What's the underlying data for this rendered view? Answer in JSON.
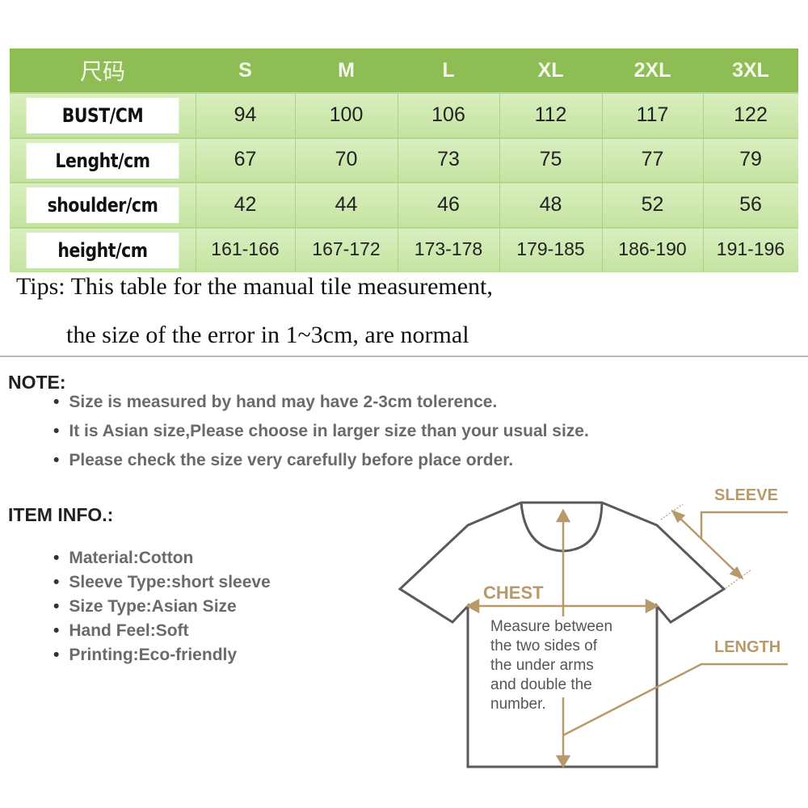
{
  "size_table": {
    "corner_label": "尺码",
    "sizes": [
      "S",
      "M",
      "L",
      "XL",
      "2XL",
      "3XL"
    ],
    "rows": [
      {
        "label": "BUST/CM",
        "values": [
          "94",
          "100",
          "106",
          "112",
          "117",
          "122"
        ]
      },
      {
        "label": "Lenght/cm",
        "values": [
          "67",
          "70",
          "73",
          "75",
          "77",
          "79"
        ]
      },
      {
        "label": "shoulder/cm",
        "values": [
          "42",
          "44",
          "46",
          "48",
          "52",
          "56"
        ]
      },
      {
        "label": "height/cm",
        "values": [
          "161-166",
          "167-172",
          "173-178",
          "179-185",
          "186-190",
          "191-196"
        ]
      }
    ],
    "header_color": "#8fbd55",
    "body_color": "#cfe8b0"
  },
  "tips": {
    "line1": "Tips: This table for the manual tile measurement,",
    "line2": "the size of the error in 1~3cm, are normal"
  },
  "note": {
    "title": "NOTE:",
    "items": [
      "Size is measured by hand may have 2-3cm tolerence.",
      "It is Asian size,Please choose in larger size than your usual size.",
      "Please check the size very carefully before place order."
    ]
  },
  "item_info": {
    "title": "ITEM INFO.:",
    "items": [
      "Material:Cotton",
      "Sleeve Type:short sleeve",
      "Size Type:Asian Size",
      "Hand Feel:Soft",
      "Printing:Eco-friendly"
    ]
  },
  "diagram": {
    "sleeve_label": "SLEEVE",
    "chest_label": "CHEST",
    "length_label": "LENGTH",
    "chest_note": [
      "Measure between",
      "the two sides of",
      "the under arms",
      "and double the",
      "number."
    ],
    "accent_color": "#b89a6a",
    "outline_color": "#5a5a5a"
  }
}
